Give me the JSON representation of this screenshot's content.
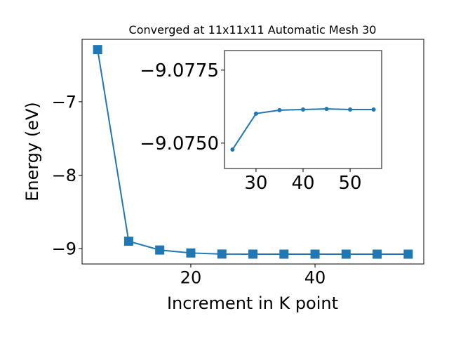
{
  "chart_data": [
    {
      "type": "line",
      "title": "Converged at 11x11x11 Automatic Mesh 30",
      "xlabel": "Increment in K point",
      "ylabel": "Energy (eV)",
      "x": [
        5,
        10,
        15,
        20,
        25,
        30,
        35,
        40,
        45,
        50,
        55
      ],
      "values": [
        -6.29,
        -8.9,
        -9.02,
        -9.06,
        -9.07478,
        -9.07601,
        -9.07613,
        -9.07615,
        -9.07617,
        -9.07615,
        -9.07615
      ],
      "color": "#1f77b4",
      "marker": "square",
      "xlim": [
        2.5,
        57.5
      ],
      "ylim": [
        -9.21,
        -6.15
      ],
      "xticks": [
        20,
        40
      ],
      "yticks": [
        {
          "value": -9,
          "label": "−9"
        },
        {
          "value": -8,
          "label": "−8"
        },
        {
          "value": -7,
          "label": "−7"
        }
      ]
    },
    {
      "type": "line",
      "x": [
        25,
        30,
        35,
        40,
        45,
        50,
        55
      ],
      "values": [
        -9.07478,
        -9.07601,
        -9.07613,
        -9.07615,
        -9.07617,
        -9.07615,
        -9.07615
      ],
      "color": "#1f77b4",
      "marker": "circle",
      "xlim": [
        23.3,
        56.7
      ],
      "ylim": [
        -9.07413,
        -9.07817
      ],
      "xticks": [
        30,
        40,
        50
      ],
      "yticks": [
        {
          "value": -9.075,
          "label": "−9.0750"
        },
        {
          "value": -9.0775,
          "label": "−9.0775"
        }
      ]
    }
  ]
}
